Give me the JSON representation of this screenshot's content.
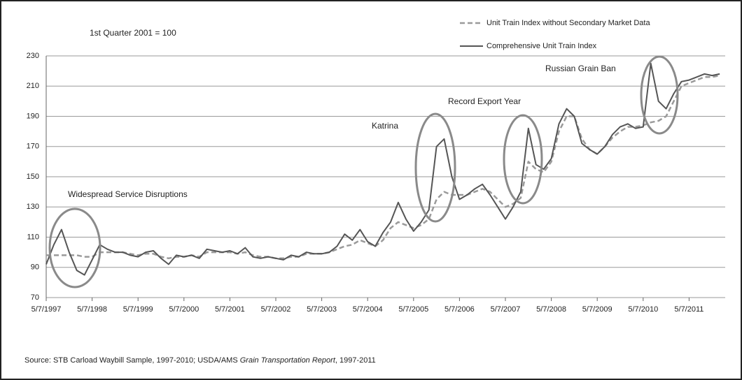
{
  "chart_data": {
    "type": "line",
    "subtitle": "1st Quarter 2001 = 100",
    "annotations": [
      "Widespread Service Disruptions",
      "Katrina",
      "Record Export Year",
      "Russian Grain Ban"
    ],
    "source": [
      "Source: STB Carload Waybill Sample, 1997-2010; USDA/AMS ",
      "Grain Transportation Report",
      ", 1997-2011"
    ],
    "categories": [
      "5/7/1997",
      null,
      null,
      null,
      null,
      null,
      "5/7/1998",
      null,
      null,
      null,
      null,
      null,
      "5/7/1999",
      null,
      null,
      null,
      null,
      null,
      "5/7/2000",
      null,
      null,
      null,
      null,
      null,
      "5/7/2001",
      null,
      null,
      null,
      null,
      null,
      "5/7/2002",
      null,
      null,
      null,
      null,
      null,
      "5/7/2003",
      null,
      null,
      null,
      null,
      null,
      "5/7/2004",
      null,
      null,
      null,
      null,
      null,
      "5/7/2005",
      null,
      null,
      null,
      null,
      null,
      "5/7/2006",
      null,
      null,
      null,
      null,
      null,
      "5/7/2007",
      null,
      null,
      null,
      null,
      null,
      "5/7/2008",
      null,
      null,
      null,
      null,
      null,
      "5/7/2009",
      null,
      null,
      null,
      null,
      null,
      "5/7/2010",
      null,
      null,
      null,
      null,
      null,
      "5/7/2011",
      null,
      null,
      null,
      null
    ],
    "series": [
      {
        "name": "Unit Train Index without Secondary Market Data",
        "color": "#9a9a9a",
        "dashed": true,
        "values": [
          98,
          98,
          98,
          98,
          98,
          97,
          97,
          100,
          100,
          100,
          100,
          99,
          98,
          99,
          99,
          97,
          96,
          97,
          97,
          98,
          97,
          100,
          100,
          100,
          100,
          99,
          100,
          98,
          97,
          97,
          96,
          96,
          97,
          97,
          99,
          99,
          99,
          100,
          102,
          104,
          105,
          108,
          106,
          104,
          108,
          116,
          120,
          118,
          116,
          118,
          122,
          135,
          140,
          138,
          138,
          138,
          140,
          142,
          140,
          135,
          130,
          132,
          136,
          160,
          155,
          153,
          160,
          180,
          190,
          190,
          175,
          168,
          165,
          170,
          176,
          180,
          183,
          183,
          184,
          186,
          187,
          190,
          200,
          210,
          212,
          214,
          216,
          216,
          217
        ]
      },
      {
        "name": "Comprehensive Unit Train Index",
        "color": "#555555",
        "dashed": false,
        "values": [
          92,
          105,
          115,
          100,
          88,
          85,
          95,
          105,
          102,
          100,
          100,
          98,
          97,
          100,
          101,
          96,
          92,
          98,
          97,
          98,
          96,
          102,
          101,
          100,
          101,
          99,
          103,
          97,
          96,
          97,
          96,
          95,
          98,
          97,
          100,
          99,
          99,
          100,
          104,
          112,
          108,
          115,
          107,
          104,
          113,
          120,
          133,
          122,
          114,
          120,
          128,
          170,
          175,
          150,
          135,
          138,
          142,
          145,
          138,
          130,
          122,
          130,
          140,
          182,
          158,
          155,
          162,
          185,
          195,
          190,
          172,
          168,
          165,
          170,
          178,
          183,
          185,
          182,
          183,
          225,
          200,
          195,
          205,
          213,
          214,
          216,
          218,
          217,
          218
        ]
      }
    ],
    "ylim": [
      70,
      230
    ],
    "yticks": [
      70,
      90,
      110,
      130,
      150,
      170,
      190,
      210,
      230
    ],
    "grid": true
  }
}
